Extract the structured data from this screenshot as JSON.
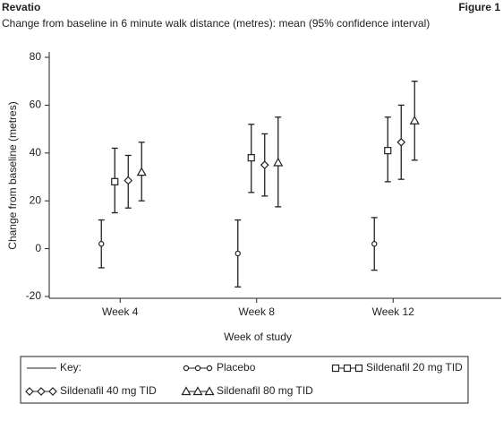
{
  "header": {
    "title": "Revatio",
    "figure": "Figure 1",
    "subtitle": "Change from baseline in 6 minute walk distance (metres): mean (95% confidence interval)"
  },
  "chart_data": {
    "type": "errorbar",
    "x_label": "Week of study",
    "y_label": "Change from baseline (metres)",
    "categories": [
      "Week 4",
      "Week 8",
      "Week 12"
    ],
    "ylim": [
      -20,
      80
    ],
    "yticks": [
      -20,
      0,
      20,
      40,
      60,
      80
    ],
    "legend_title": "Key:",
    "series": [
      {
        "name": "Placebo",
        "marker": "circle",
        "color": "#222222",
        "values": [
          2,
          -2,
          2
        ],
        "lower": [
          -8,
          -16,
          -9
        ],
        "upper": [
          12,
          12,
          13
        ]
      },
      {
        "name": "Sildenafil 20 mg TID",
        "marker": "square",
        "color": "#222222",
        "values": [
          28,
          38,
          41
        ],
        "lower": [
          15,
          23.5,
          28
        ],
        "upper": [
          42,
          52,
          55
        ]
      },
      {
        "name": "Sildenafil 40 mg TID",
        "marker": "diamond",
        "color": "#222222",
        "values": [
          28.5,
          35,
          44.5
        ],
        "lower": [
          17,
          22,
          29
        ],
        "upper": [
          39,
          48,
          60
        ]
      },
      {
        "name": "Sildenafil 80 mg TID",
        "marker": "triangle",
        "color": "#222222",
        "values": [
          32,
          36,
          53.5
        ],
        "lower": [
          20,
          17.5,
          37
        ],
        "upper": [
          44.5,
          55,
          70
        ]
      }
    ]
  }
}
